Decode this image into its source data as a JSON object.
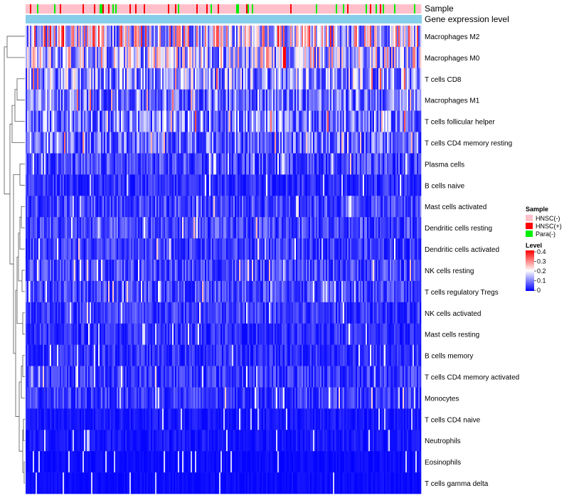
{
  "chart_data": {
    "type": "heatmap",
    "title": "",
    "annotation_tracks": [
      "Sample",
      "Gene expression level"
    ],
    "rows": [
      "Macrophages M2",
      "Macrophages M0",
      "T cells CD8",
      "Macrophages M1",
      "T cells follicular helper",
      "T cells CD4 memory resting",
      "Plasma cells",
      "B cells naive",
      "Mast cells activated",
      "Dendritic cells resting",
      "Dendritic cells activated",
      "NK cells resting",
      "T cells regulatory  Tregs",
      "NK cells activated",
      "Mast cells resting",
      "B cells memory",
      "T cells CD4 memory activated",
      "Monocytes",
      "T cells CD4 naive",
      "Neutrophils",
      "Eosinophils",
      "T cells gamma delta"
    ],
    "row_mean_level": [
      0.2,
      0.17,
      0.13,
      0.1,
      0.11,
      0.09,
      0.06,
      0.04,
      0.06,
      0.06,
      0.05,
      0.06,
      0.06,
      0.05,
      0.04,
      0.04,
      0.05,
      0.05,
      0.02,
      0.02,
      0.01,
      0.01
    ],
    "sample_legend": {
      "title": "Sample",
      "items": [
        {
          "label": "HNSC(-)",
          "color": "#ffc0cb"
        },
        {
          "label": "HNSC(+)",
          "color": "#ff0000"
        },
        {
          "label": "Para(-)",
          "color": "#00ee00"
        }
      ]
    },
    "level_legend": {
      "title": "Level",
      "ticks": [
        "0.4",
        "0.3",
        "0.2",
        "0.1",
        "0"
      ],
      "range": [
        0,
        0.4
      ],
      "colors": [
        "#0000ff",
        "#ffffff",
        "#ff0000"
      ]
    },
    "expression_track_color": "#87ceeb"
  }
}
